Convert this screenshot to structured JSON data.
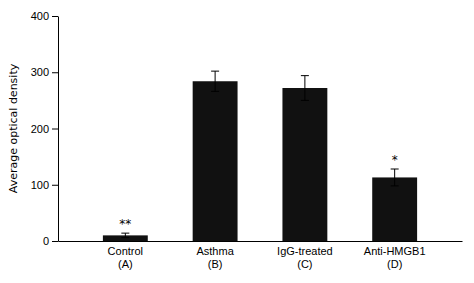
{
  "chart_data": {
    "type": "bar",
    "categories": [
      "Control\n(A)",
      "Asthma\n(B)",
      "IgG-treated\n(C)",
      "Anti-HMGB1\n(D)"
    ],
    "values": [
      10,
      284,
      272,
      113
    ],
    "errors": [
      4,
      18,
      22,
      15
    ],
    "significance": [
      "**",
      null,
      null,
      "*"
    ],
    "color": "#111111",
    "ylabel": "Average optical density",
    "ylim": [
      0,
      400
    ],
    "yticks": [
      0,
      100,
      200,
      300,
      400
    ],
    "grid": false
  }
}
